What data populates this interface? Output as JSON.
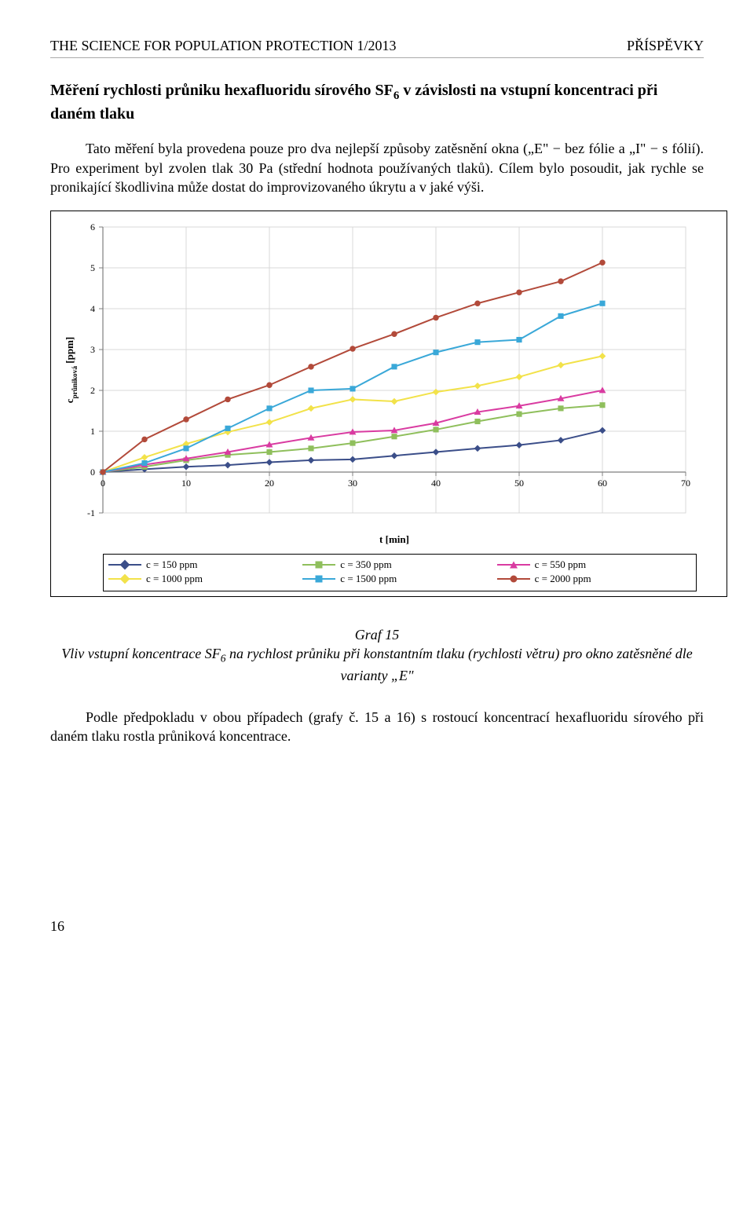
{
  "header": {
    "left": "THE SCIENCE FOR POPULATION PROTECTION 1/2013",
    "right": "PŘÍSPĚVKY"
  },
  "section_title_prefix": "Měření rychlosti průniku hexafluoridu sírového SF",
  "section_title_sub": "6",
  "section_title_suffix": " v závislosti na vstupní koncentraci při daném tlaku",
  "para1": "Tato měření byla provedena pouze pro dva nejlepší způsoby zatěsnění okna („E\" − bez fólie a „I\" − s fólií). Pro experiment byl zvolen tlak 30 Pa (střední hodnota používaných tlaků). Cílem bylo posoudit, jak rychle se pronikající škodlivina může dostat do improvizovaného úkrytu a v jaké výši.",
  "chart": {
    "type": "line",
    "background_color": "#ffffff",
    "plot_bg": "#ffffff",
    "grid_color": "#d9d9d9",
    "axis_color": "#7f7f7f",
    "xlabel": "t [min]",
    "ylabel_prefix": "c",
    "ylabel_sub": "průniková",
    "ylabel_suffix": " [ppm]",
    "label_fontsize": 13,
    "tick_fontsize": 12,
    "xlim": [
      0,
      70
    ],
    "x_ticks": [
      0,
      10,
      20,
      30,
      40,
      50,
      60,
      70
    ],
    "ylim": [
      -1,
      6
    ],
    "y_ticks": [
      -1,
      0,
      1,
      2,
      3,
      4,
      5,
      6
    ],
    "x_values": [
      0,
      5,
      10,
      15,
      20,
      25,
      30,
      35,
      40,
      45,
      50,
      55,
      60
    ],
    "series": [
      {
        "label": "c = 150 ppm",
        "color": "#3b4e89",
        "marker": "diamond",
        "values": [
          0.0,
          0.07,
          0.13,
          0.17,
          0.24,
          0.29,
          0.31,
          0.4,
          0.49,
          0.58,
          0.66,
          0.78,
          1.02
        ]
      },
      {
        "label": "c = 350 ppm",
        "color": "#8fbf5c",
        "marker": "square",
        "values": [
          0.0,
          0.13,
          0.29,
          0.42,
          0.49,
          0.58,
          0.71,
          0.87,
          1.04,
          1.24,
          1.42,
          1.56,
          1.64
        ]
      },
      {
        "label": "c = 550 ppm",
        "color": "#d93ba1",
        "marker": "triangle",
        "values": [
          0.0,
          0.18,
          0.33,
          0.49,
          0.67,
          0.84,
          0.98,
          1.02,
          1.2,
          1.47,
          1.62,
          1.8,
          2.0
        ]
      },
      {
        "label": "c = 1000 ppm",
        "color": "#f2e24a",
        "marker": "diamond",
        "values": [
          0.0,
          0.36,
          0.69,
          0.98,
          1.22,
          1.56,
          1.78,
          1.73,
          1.96,
          2.11,
          2.33,
          2.62,
          2.84
        ]
      },
      {
        "label": "c = 1500 ppm",
        "color": "#3aa8d8",
        "marker": "square",
        "values": [
          0.0,
          0.22,
          0.58,
          1.07,
          1.56,
          2.0,
          2.04,
          2.58,
          2.93,
          3.18,
          3.24,
          3.82,
          4.13
        ]
      },
      {
        "label": "c = 2000 ppm",
        "color": "#b24a3a",
        "marker": "circle",
        "values": [
          0.0,
          0.8,
          1.29,
          1.78,
          2.13,
          2.58,
          3.02,
          3.38,
          3.78,
          4.13,
          4.4,
          4.67,
          5.13
        ]
      }
    ],
    "line_width": 2,
    "marker_size": 6
  },
  "caption_title": "Graf 15",
  "caption_body_prefix": "Vliv vstupní koncentrace SF",
  "caption_body_sub": "6",
  "caption_body_suffix": " na rychlost průniku při konstantním tlaku (rychlosti větru) pro okno zatěsněné dle varianty „E\"",
  "para2": "Podle předpokladu v obou případech (grafy č. 15 a 16) s rostoucí koncentrací hexafluoridu sírového při daném tlaku rostla průniková koncentrace.",
  "page_number": "16"
}
